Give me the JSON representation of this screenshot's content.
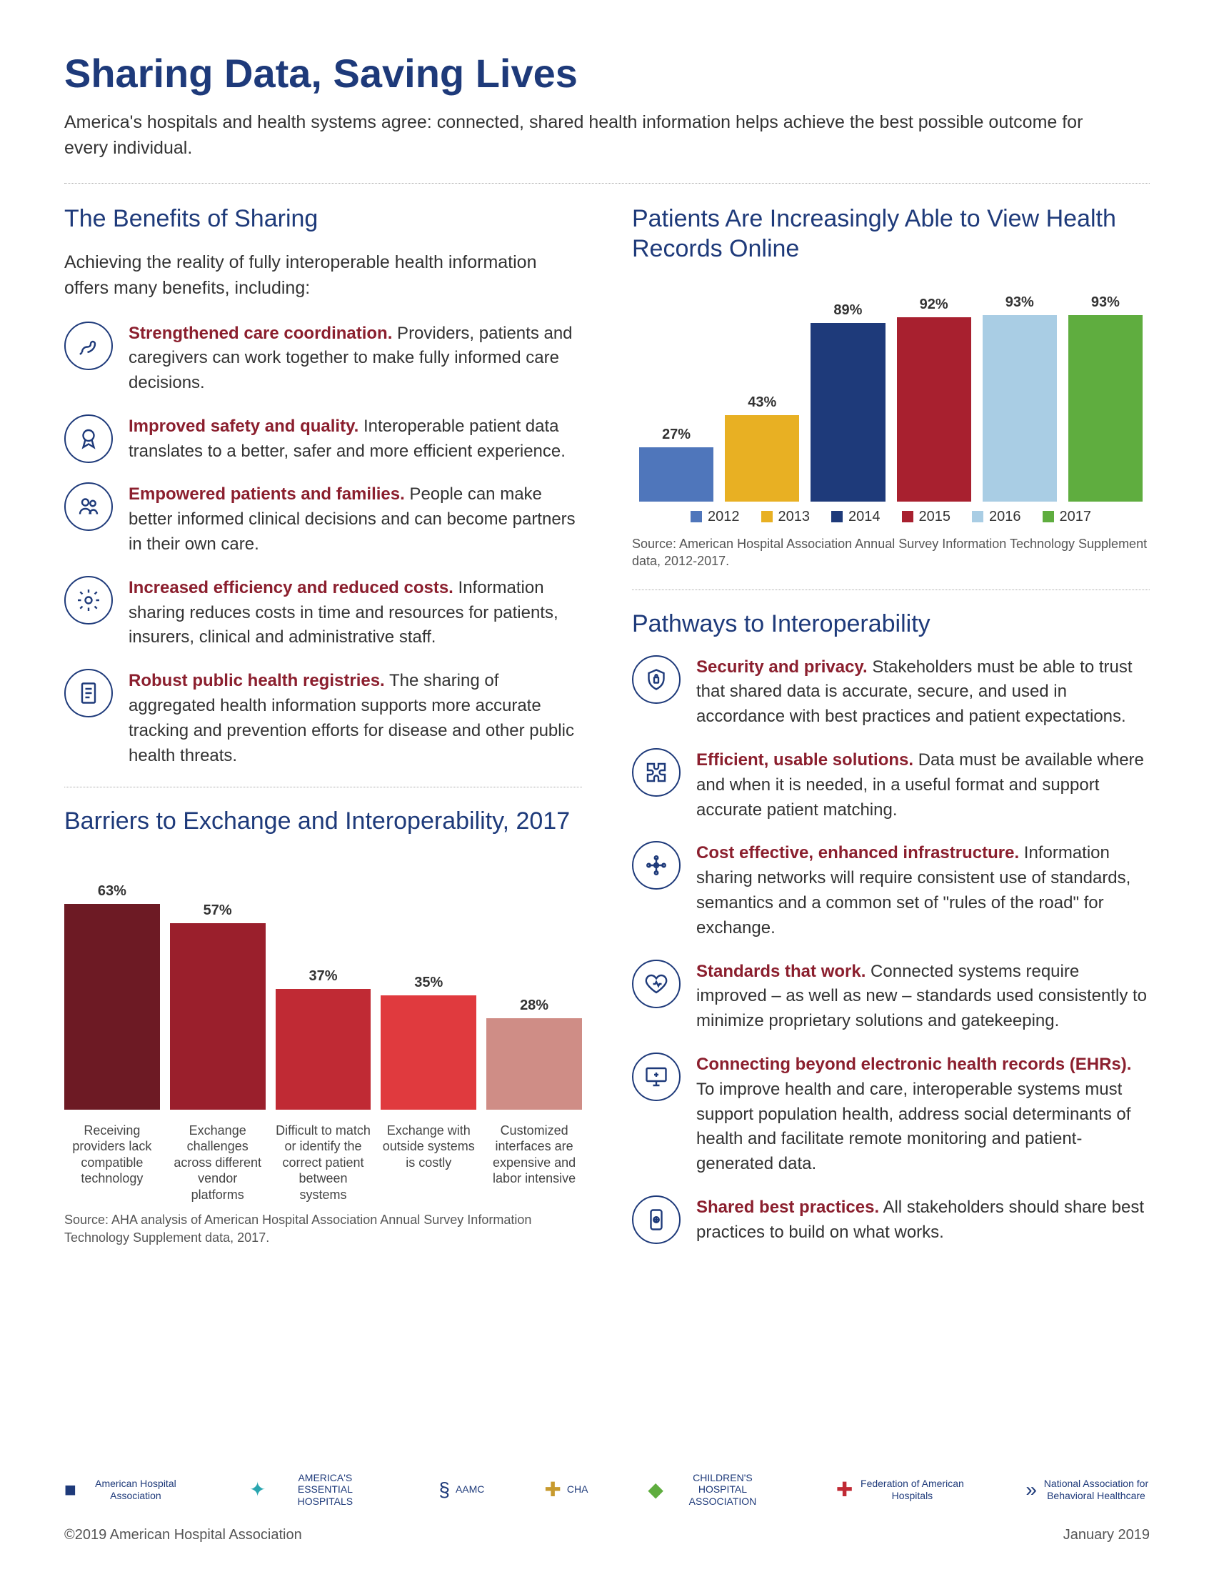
{
  "header": {
    "title": "Sharing Data, Saving Lives",
    "subtitle": "America's hospitals and health systems agree: connected, shared health information helps achieve the best possible outcome for every individual."
  },
  "benefits": {
    "title": "The Benefits of Sharing",
    "intro": "Achieving the reality of fully interoperable health information offers many benefits, including:",
    "items": [
      {
        "lead": "Strengthened care coordination.",
        "body": " Providers, patients and caregivers can work together to make fully informed care decisions."
      },
      {
        "lead": "Improved safety and quality.",
        "body": " Interoperable patient data translates to a better, safer and more efficient experience."
      },
      {
        "lead": "Empowered patients and families.",
        "body": " People can make better informed clinical decisions and can become partners in their own care."
      },
      {
        "lead": "Increased efficiency and reduced costs.",
        "body": " Information sharing reduces costs in time and resources for patients, insurers, clinical and administrative staff."
      },
      {
        "lead": "Robust public health registries.",
        "body": " The sharing of aggregated health information supports more accurate tracking and prevention efforts for disease and other public health threats."
      }
    ]
  },
  "records_chart": {
    "title": "Patients Are Increasingly Able to View Health Records Online",
    "type": "bar",
    "categories": [
      "2012",
      "2013",
      "2014",
      "2015",
      "2016",
      "2017"
    ],
    "values": [
      27,
      43,
      89,
      92,
      93,
      93
    ],
    "value_labels": [
      "27%",
      "43%",
      "89%",
      "92%",
      "93%",
      "93%"
    ],
    "colors": [
      "#4f76bb",
      "#e8b023",
      "#1e3a7a",
      "#a8202f",
      "#a9cde4",
      "#5fad3f"
    ],
    "ylim_max": 100,
    "source": "Source: American Hospital Association Annual Survey Information Technology Supplement data, 2012-2017."
  },
  "barriers_chart": {
    "title": "Barriers to Exchange and Interoperability, 2017",
    "type": "bar",
    "values": [
      63,
      57,
      37,
      35,
      28
    ],
    "value_labels": [
      "63%",
      "57%",
      "37%",
      "35%",
      "28%"
    ],
    "labels": [
      "Receiving providers lack compatible technology",
      "Exchange challenges across different vendor platforms",
      "Difficult to match or identify the correct patient between systems",
      "Exchange with outside systems is costly",
      "Customized interfaces are expensive and labor intensive"
    ],
    "colors": [
      "#6d1a24",
      "#9a1f2c",
      "#c02a34",
      "#e03a3e",
      "#cf8d86"
    ],
    "ylim_max": 70,
    "source": "Source: AHA analysis of American Hospital Association Annual Survey Information Technology Supplement data, 2017."
  },
  "pathways": {
    "title": "Pathways to Interoperability",
    "items": [
      {
        "lead": "Security and privacy.",
        "body": " Stakeholders must be able to trust that shared data is accurate, secure, and used in accordance with best practices and patient expectations."
      },
      {
        "lead": "Efficient, usable solutions.",
        "body": " Data must be available where and when it is needed, in a useful format and support accurate patient matching."
      },
      {
        "lead": "Cost effective, enhanced infrastructure.",
        "body": " Information sharing networks will require consistent use of standards, semantics and a common set of \"rules of the road\" for exchange."
      },
      {
        "lead": "Standards that work.",
        "body": " Connected systems require improved – as well as new – standards used consistently to minimize proprietary solutions and gatekeeping."
      },
      {
        "lead": "Connecting beyond electronic health records (EHRs).",
        "body": " To improve health and care, interoperable systems must support population health, address social determinants of health and facilitate remote monitoring and patient-generated data."
      },
      {
        "lead": "Shared best practices.",
        "body": " All stakeholders should share best practices to build on what works."
      }
    ]
  },
  "logos": [
    "American Hospital Association",
    "AMERICA'S ESSENTIAL HOSPITALS",
    "AAMC",
    "CHA",
    "CHILDREN'S HOSPITAL ASSOCIATION",
    "Federation of American Hospitals",
    "National Association for Behavioral Healthcare"
  ],
  "footer": {
    "copyright": "©2019 American Hospital Association",
    "date": "January 2019"
  }
}
